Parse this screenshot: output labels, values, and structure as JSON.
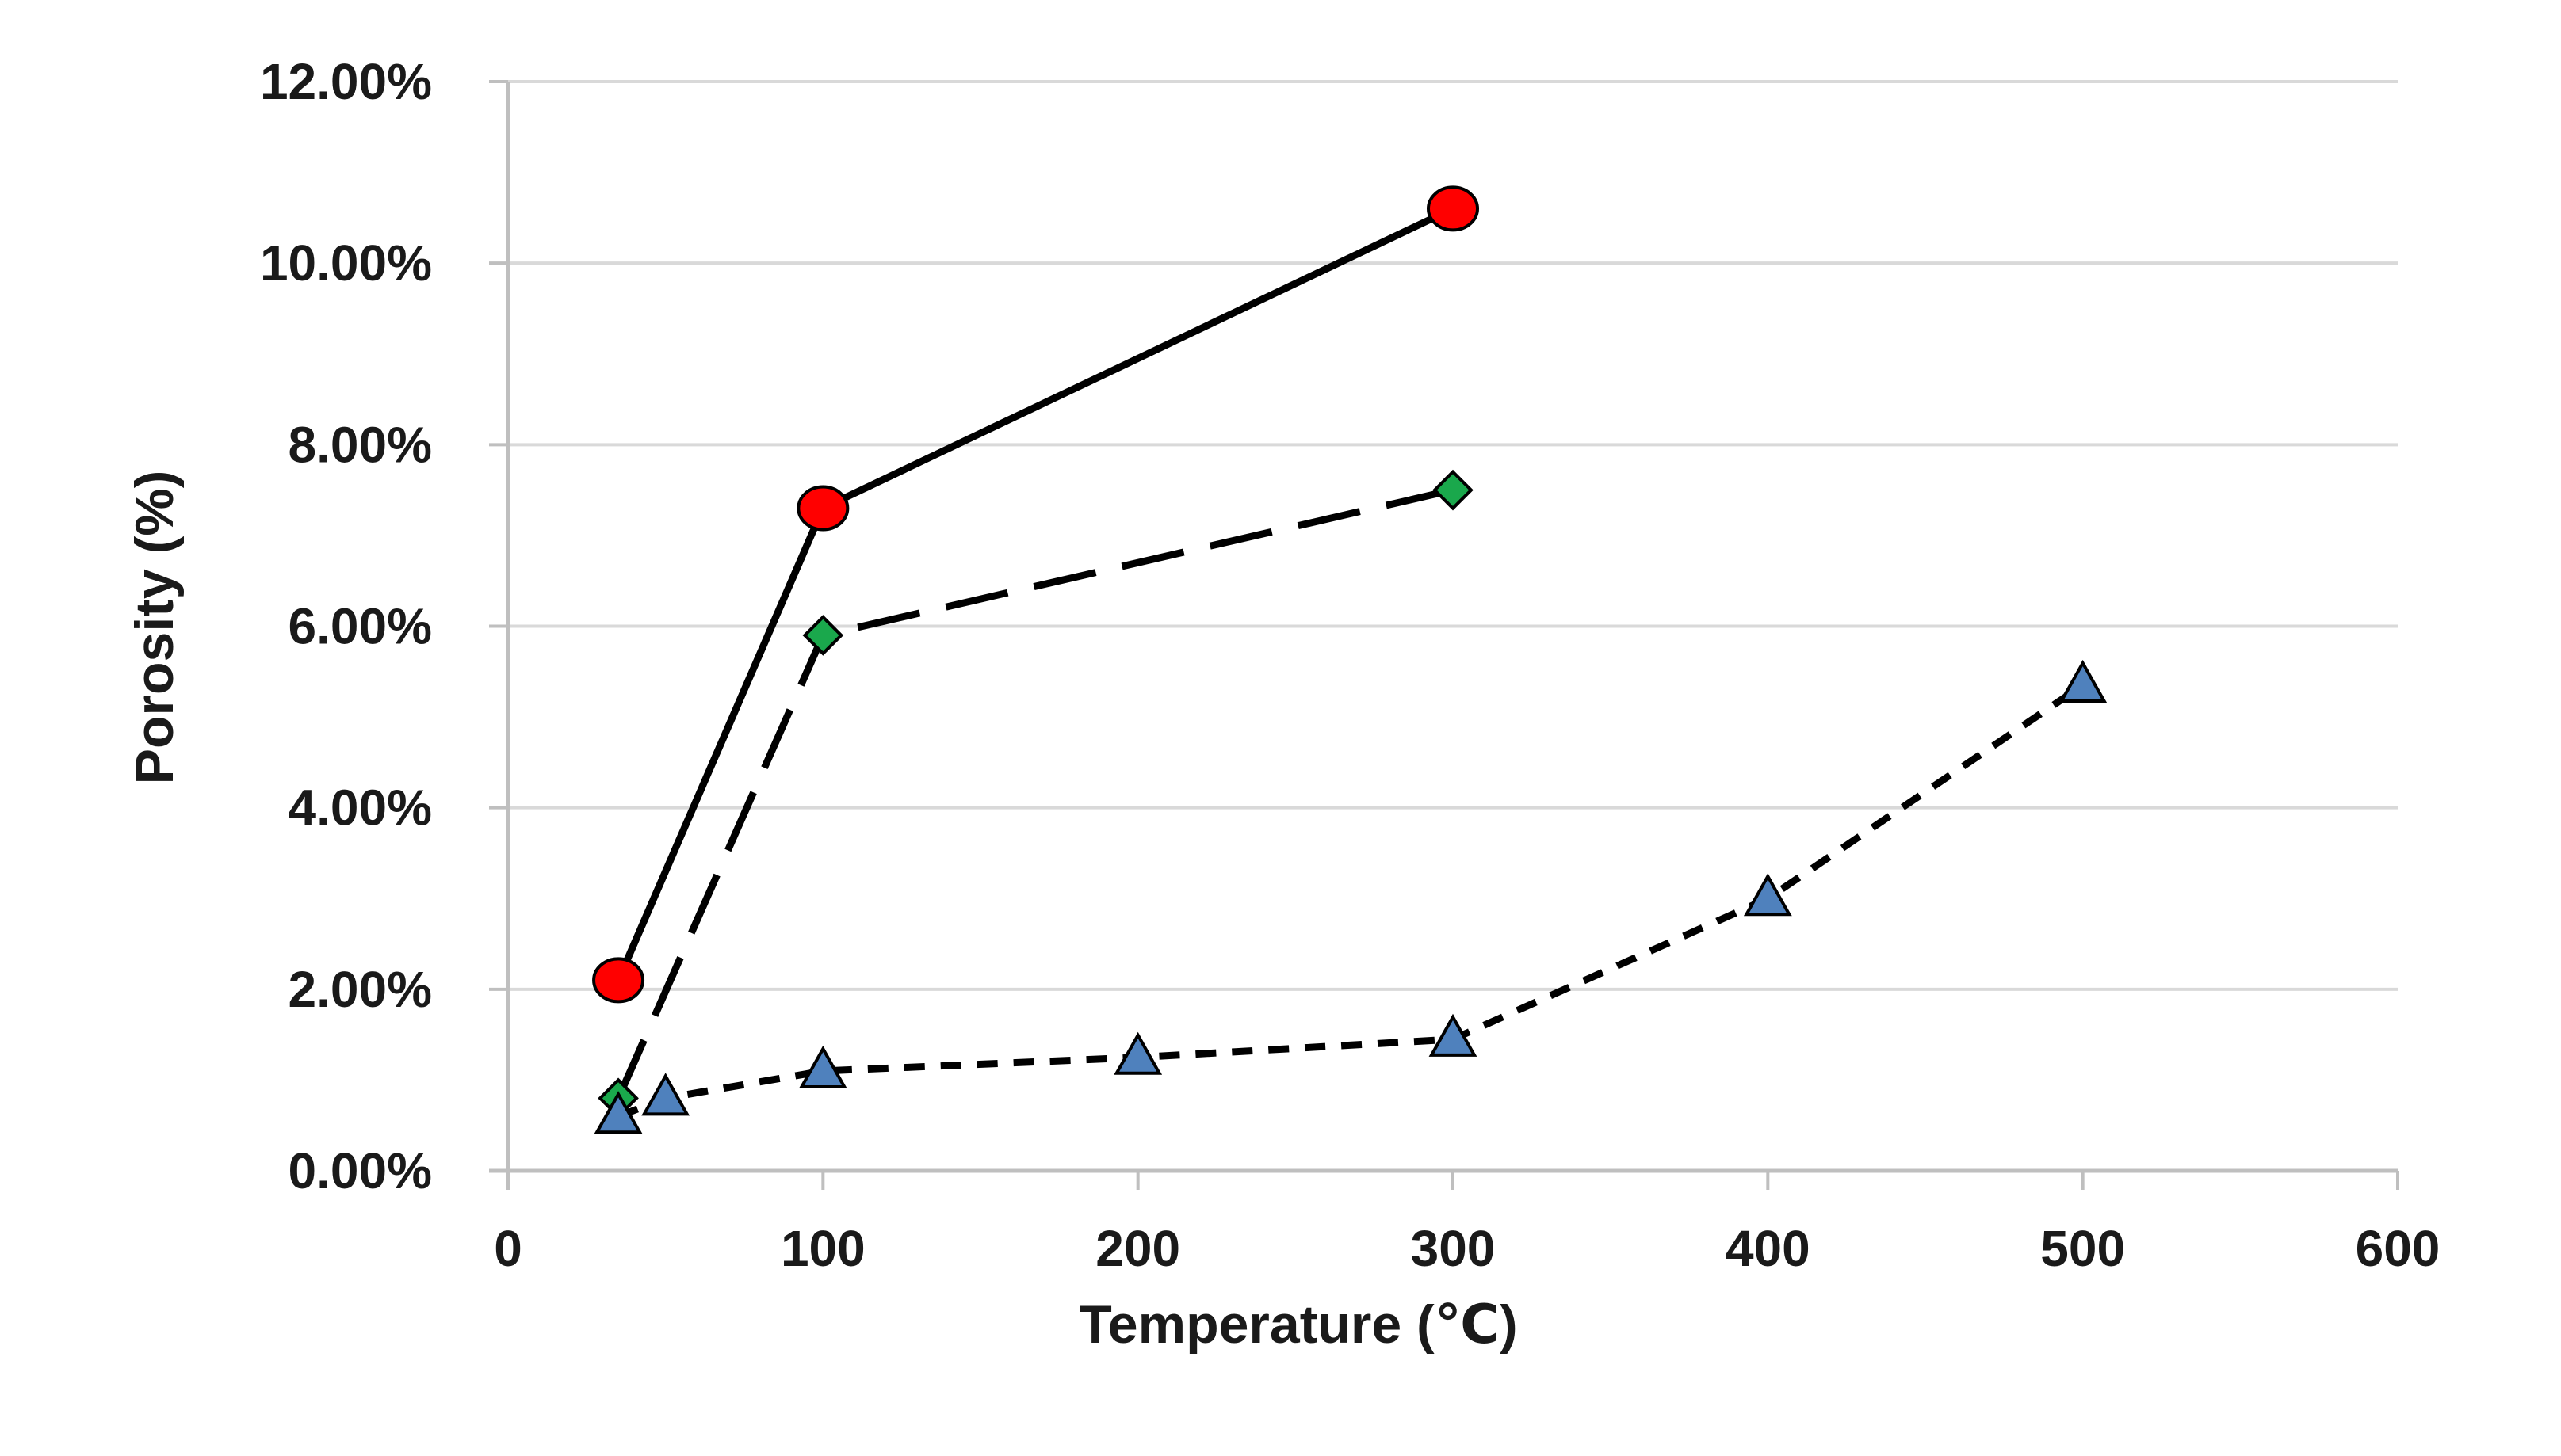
{
  "chart_data": {
    "type": "line",
    "title": "",
    "xlabel": "Temperature (℃)",
    "ylabel": "Porosity (%)",
    "xlim": [
      0,
      600
    ],
    "ylim": [
      0,
      0.12
    ],
    "xticks": [
      0,
      100,
      200,
      300,
      400,
      500,
      600
    ],
    "yticks": [
      0,
      0.02,
      0.04,
      0.06,
      0.08,
      0.1,
      0.12
    ],
    "xtick_labels": [
      "0",
      "100",
      "200",
      "300",
      "400",
      "500",
      "600"
    ],
    "ytick_labels": [
      "0.00%",
      "2.00%",
      "4.00%",
      "6.00%",
      "8.00%",
      "10.00%",
      "12.00%"
    ],
    "grid": true,
    "legend": "none",
    "series": [
      {
        "name": "series-circle",
        "marker": "circle",
        "line_style": "solid",
        "color": "#ff0000",
        "points": [
          [
            35,
            0.021
          ],
          [
            100,
            0.073
          ],
          [
            300,
            0.106
          ]
        ]
      },
      {
        "name": "series-diamond",
        "marker": "diamond",
        "line_style": "long-dash",
        "color": "#1aa84c",
        "points": [
          [
            35,
            0.008
          ],
          [
            100,
            0.059
          ],
          [
            300,
            0.075
          ]
        ]
      },
      {
        "name": "series-triangle",
        "marker": "triangle",
        "line_style": "short-dash",
        "color": "#4f81bd",
        "points": [
          [
            35,
            0.006
          ],
          [
            50,
            0.008
          ],
          [
            100,
            0.011
          ],
          [
            200,
            0.0125
          ],
          [
            300,
            0.0145
          ],
          [
            400,
            0.03
          ],
          [
            500,
            0.0535
          ]
        ]
      }
    ]
  }
}
